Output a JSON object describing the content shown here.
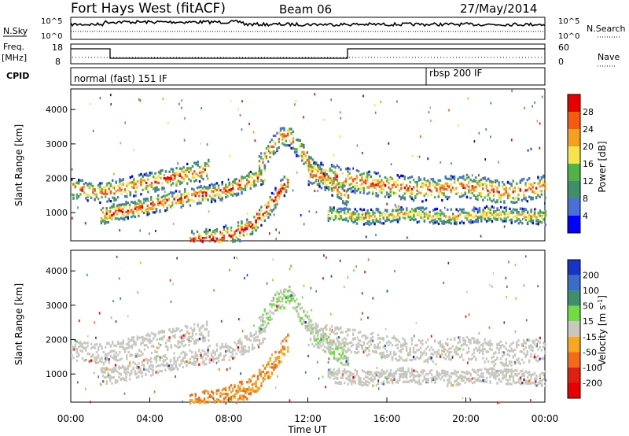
{
  "header": {
    "title": "Fort Hays West (fitACF)",
    "beam": "Beam 06",
    "date": "27/May/2014"
  },
  "panels": {
    "nsky": {
      "left_label": "N.Sky",
      "right_label": "N.Search",
      "ticks_left": [
        "10^5",
        "10^0"
      ],
      "ticks_right": [
        "10^5",
        "10^0"
      ]
    },
    "freq": {
      "left_label_1": "Freq.",
      "left_label_2": "[MHz]",
      "right_label": "Nave",
      "ticks_left": [
        "18",
        "8"
      ],
      "ticks_right": [
        "60",
        "0"
      ]
    },
    "cpid": {
      "label": "CPID",
      "modes": [
        "normal (fast) 151 IF",
        "rbsp 200 IF"
      ]
    }
  },
  "chart_data": [
    {
      "type": "heatmap",
      "quantity": "Power",
      "ylabel": "Slant Range [km]",
      "ylim": [
        180,
        4600
      ],
      "yticks": [
        "1000",
        "2000",
        "3000",
        "4000"
      ],
      "colorbar_label": "Power [dB]",
      "colorbar_ticks": [
        "4",
        "8",
        "12",
        "16",
        "20",
        "24",
        "28"
      ],
      "colorbar_colors": [
        "#0000ff",
        "#4a6fd6",
        "#3f8f6b",
        "#52b244",
        "#f7e34a",
        "#f7a020",
        "#f55a10",
        "#e80000"
      ],
      "echo_bands": [
        {
          "t": [
            0,
            1.5,
            3,
            5,
            7
          ],
          "r": [
            1750,
            1600,
            1800,
            2050,
            2300
          ],
          "w": 300,
          "level": 0.75
        },
        {
          "t": [
            1.5,
            4,
            6,
            8,
            9.8
          ],
          "r": [
            950,
            1250,
            1500,
            1700,
            2150
          ],
          "w": 260,
          "level": 0.8
        },
        {
          "t": [
            9.5,
            10.5,
            11,
            11.5,
            12.5,
            14
          ],
          "r": [
            2400,
            3200,
            3300,
            2900,
            2100,
            1500
          ],
          "w": 300,
          "level": 0.7
        },
        {
          "t": [
            12,
            14,
            16,
            18,
            20,
            22,
            24
          ],
          "r": [
            2200,
            2000,
            1800,
            1700,
            1800,
            1600,
            1800
          ],
          "w": 350,
          "level": 0.75
        },
        {
          "t": [
            13,
            15,
            17,
            19,
            21,
            24
          ],
          "r": [
            1000,
            900,
            1000,
            900,
            1000,
            900
          ],
          "w": 220,
          "level": 0.55
        },
        {
          "t": [
            6,
            7.5,
            9,
            10,
            11
          ],
          "r": [
            200,
            300,
            600,
            1200,
            2000
          ],
          "w": 300,
          "level": 0.9
        }
      ]
    },
    {
      "type": "heatmap",
      "quantity": "Velocity",
      "ylabel": "Slant Range [km]",
      "ylim": [
        180,
        4600
      ],
      "yticks": [
        "1000",
        "2000",
        "3000",
        "4000"
      ],
      "xlabel": "Time UT",
      "xlim": [
        0,
        24
      ],
      "xticks": [
        "00:00",
        "04:00",
        "08:00",
        "12:00",
        "16:00",
        "20:00",
        "00:00"
      ],
      "colorbar_label": "Velocity [m s^-1]",
      "colorbar_ticks": [
        "200",
        "100",
        "50",
        "15",
        "-15",
        "-50",
        "-100",
        "-200"
      ],
      "colorbar_colors": [
        "#1a33c7",
        "#3b6cc9",
        "#3f8f6b",
        "#6fdc42",
        "#c8c8c0",
        "#f5a820",
        "#f56a18",
        "#e02010",
        "#e80000"
      ]
    }
  ]
}
